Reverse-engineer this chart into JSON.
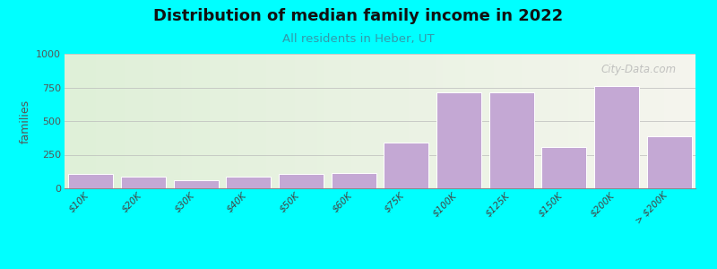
{
  "title": "Distribution of median family income in 2022",
  "subtitle": "All residents in Heber, UT",
  "ylabel": "families",
  "categories": [
    "$10K",
    "$20K",
    "$30K",
    "$40K",
    "$50K",
    "$60K",
    "$75K",
    "$100K",
    "$125K",
    "$150K",
    "$200K",
    "> $200K"
  ],
  "bar_heights": [
    105,
    90,
    60,
    90,
    105,
    115,
    340,
    715,
    715,
    310,
    760,
    390
  ],
  "ylim": [
    0,
    1000
  ],
  "yticks": [
    0,
    250,
    500,
    750,
    1000
  ],
  "bar_color": "#c4a8d4",
  "background_color": "#00ffff",
  "title_fontsize": 13,
  "subtitle_fontsize": 9.5,
  "subtitle_color": "#3399aa",
  "watermark": "City-Data.com"
}
